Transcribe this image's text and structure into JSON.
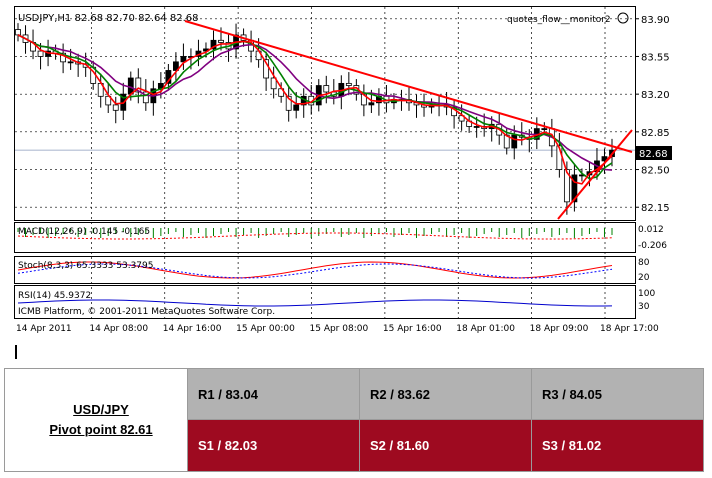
{
  "chart": {
    "header": "USDJPY,H1  82.68 82.70 82.64 82.68",
    "watermark": "quotes_flow__monitor2",
    "price_ticks": [
      "83.90",
      "83.55",
      "83.20",
      "82.85",
      "82.50",
      "82.15"
    ],
    "current_price": "82.68",
    "time_ticks": [
      "14 Apr 2011",
      "14 Apr 08:00",
      "14 Apr 16:00",
      "15 Apr 00:00",
      "15 Apr 08:00",
      "15 Apr 16:00",
      "18 Apr 01:00",
      "18 Apr 09:00",
      "18 Apr 17:00"
    ],
    "macd": {
      "label": "MACD(12,26,9) -0.145 -0.165",
      "ticks": [
        "0.012",
        "-0.206"
      ]
    },
    "stoch": {
      "label": "Stoch(8,3,3) 65.3333 53.3795",
      "ticks": [
        "80",
        "20"
      ]
    },
    "rsi": {
      "label": "RSI(14) 45.9372",
      "ticks": [
        "100",
        "30"
      ]
    },
    "copyright": "ICMB Platform, © 2001-2011 MetaQuotes Software Corp.",
    "colors": {
      "bull": "#000000",
      "bear": "#ffffff",
      "ma_fast": "#ff0000",
      "ma_mid": "#008000",
      "ma_slow": "#800080",
      "trendline": "#ff0000"
    }
  },
  "chart_data": {
    "type": "candlestick",
    "symbol": "USDJPY",
    "timeframe": "H1",
    "ylim": [
      82.05,
      84.0
    ],
    "close": [
      83.75,
      83.68,
      83.6,
      83.55,
      83.6,
      83.58,
      83.5,
      83.5,
      83.48,
      83.45,
      83.3,
      83.18,
      83.1,
      83.05,
      83.2,
      83.35,
      83.22,
      83.12,
      83.25,
      83.3,
      83.42,
      83.5,
      83.55,
      83.55,
      83.6,
      83.62,
      83.7,
      83.68,
      83.62,
      83.75,
      83.7,
      83.6,
      83.52,
      83.35,
      83.25,
      83.18,
      83.05,
      83.1,
      83.18,
      83.1,
      83.28,
      83.22,
      83.18,
      83.3,
      83.28,
      83.2,
      83.1,
      83.12,
      83.18,
      83.12,
      83.15,
      83.15,
      83.12,
      83.1,
      83.08,
      83.1,
      83.1,
      83.08,
      83.0,
      82.95,
      82.9,
      82.9,
      82.88,
      82.92,
      82.82,
      82.7,
      82.82,
      82.8,
      82.78,
      82.88,
      82.88,
      82.72,
      82.5,
      82.2,
      82.45,
      82.45,
      82.48,
      82.58,
      82.62,
      82.68
    ]
  },
  "pivot": {
    "pair": "USD/JPY",
    "pivot": "Pivot point 82.61",
    "r1": "R1 / 83.04",
    "r2": "R2 / 83.62",
    "r3": "R3 / 84.05",
    "s1": "S1 / 82.03",
    "s2": "S2 / 81.60",
    "s3": "S3 / 81.02"
  }
}
